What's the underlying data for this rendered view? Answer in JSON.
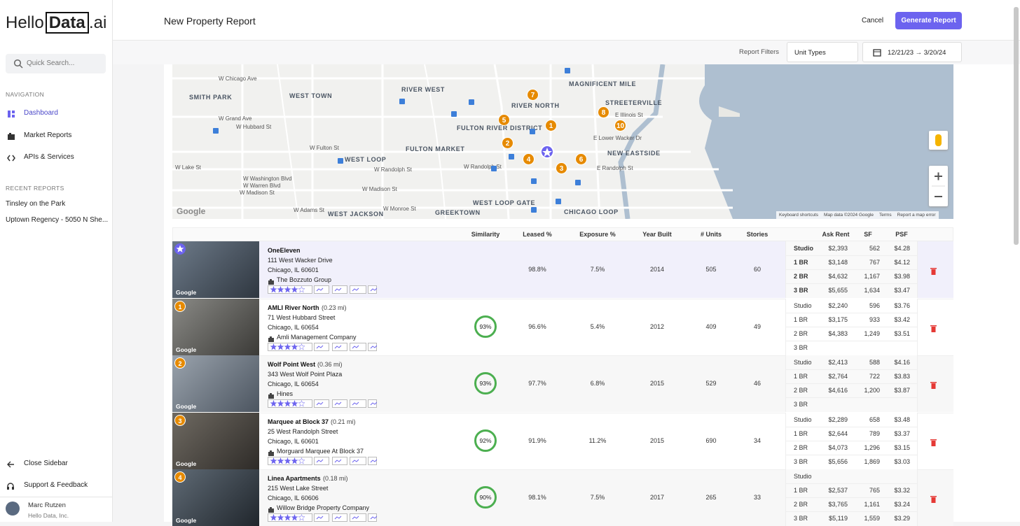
{
  "sidebar": {
    "logo": {
      "hello": "Hello",
      "data": "Data",
      "ai": ".ai"
    },
    "search_placeholder": "Quick Search...",
    "nav_heading": "NAVIGATION",
    "nav": [
      "Dashboard",
      "Market Reports",
      "APIs & Services"
    ],
    "recent_heading": "RECENT REPORTS",
    "recent": [
      "Tinsley on the Park",
      "Uptown Regency - 5050 N She..."
    ],
    "footer": [
      "Close Sidebar",
      "Support & Feedback"
    ],
    "user": {
      "name": "Marc Rutzen",
      "org": "Hello Data, Inc."
    }
  },
  "header": {
    "title": "New Property Report",
    "cancel": "Cancel",
    "generate": "Generate Report"
  },
  "filters": {
    "label": "Report Filters",
    "unit_types": "Unit Types",
    "dates": "12/21/23 → 3/20/24"
  },
  "map": {
    "labels": [
      "W Chicago Ave",
      "RIVER WEST",
      "MAGNIFICENT MILE",
      "SMITH PARK",
      "WEST TOWN",
      "STREETERVILLE",
      "RIVER NORTH",
      "FULTON RIVER DISTRICT",
      "W Grand Ave",
      "W Hubbard St",
      "E Illinois St",
      "W Fulton St",
      "FULTON MARKET",
      "WEST LOOP",
      "NEW EASTSIDE",
      "E Lower Wacker Dr",
      "W Lake St",
      "W Randolph St",
      "W Washington Blvd",
      "W Warren Blvd",
      "W Madison St",
      "E Randolph St",
      "W Adams St",
      "W Monroe St",
      "WEST JACKSON",
      "GREEKTOWN",
      "WEST LOOP GATE",
      "CHICAGO LOOP",
      "W Randolph St",
      "W Madison St"
    ],
    "markers": [
      "1",
      "2",
      "3",
      "4",
      "5",
      "6",
      "7",
      "8",
      "10"
    ],
    "logo": "Google",
    "attribution": [
      "Keyboard shortcuts",
      "Map data ©2024 Google",
      "Terms",
      "Report a map error"
    ]
  },
  "table": {
    "columns": [
      "Similarity",
      "Leased %",
      "Exposure %",
      "Year Built",
      "# Units",
      "Stories",
      "Ask Rent",
      "SF",
      "PSF"
    ],
    "photo_watermark": "Google",
    "rows": [
      {
        "name": "OneEleven",
        "address": "111 West Wacker Drive",
        "city": "Chicago, IL 60601",
        "manager": "The Bozzuto Group",
        "leased": "98.8%",
        "exposure": "7.5%",
        "year": "2014",
        "units": "505",
        "stories": "60",
        "mix": [
          [
            "Studio",
            "$2,393",
            "562",
            "$4.28"
          ],
          [
            "1 BR",
            "$3,148",
            "767",
            "$4.12"
          ],
          [
            "2 BR",
            "$4,632",
            "1,167",
            "$3.98"
          ],
          [
            "3 BR",
            "$5,655",
            "1,634",
            "$3.47"
          ]
        ]
      },
      {
        "badge": "1",
        "name": "AMLI River North",
        "distance": "(0.23 mi)",
        "address": "71 West Hubbard Street",
        "city": "Chicago, IL 60654",
        "manager": "Amli Management Company",
        "similarity": "93%",
        "leased": "96.6%",
        "exposure": "5.4%",
        "year": "2012",
        "units": "409",
        "stories": "49",
        "mix": [
          [
            "Studio",
            "$2,240",
            "596",
            "$3.76"
          ],
          [
            "1 BR",
            "$3,175",
            "933",
            "$3.42"
          ],
          [
            "2 BR",
            "$4,383",
            "1,249",
            "$3.51"
          ],
          [
            "3 BR"
          ]
        ]
      },
      {
        "badge": "2",
        "name": "Wolf Point West",
        "distance": "(0.36 mi)",
        "address": "343 West Wolf Point Plaza",
        "city": "Chicago, IL 60654",
        "manager": "Hines",
        "similarity": "93%",
        "leased": "97.7%",
        "exposure": "6.8%",
        "year": "2015",
        "units": "529",
        "stories": "46",
        "mix": [
          [
            "Studio",
            "$2,413",
            "588",
            "$4.16"
          ],
          [
            "1 BR",
            "$2,764",
            "722",
            "$3.83"
          ],
          [
            "2 BR",
            "$4,616",
            "1,200",
            "$3.87"
          ],
          [
            "3 BR"
          ]
        ]
      },
      {
        "badge": "3",
        "name": "Marquee at Block 37",
        "distance": "(0.21 mi)",
        "address": "25 West Randolph Street",
        "city": "Chicago, IL 60601",
        "manager": "Morguard Marquee At Block 37",
        "similarity": "92%",
        "leased": "91.9%",
        "exposure": "11.2%",
        "year": "2015",
        "units": "690",
        "stories": "34",
        "mix": [
          [
            "Studio",
            "$2,289",
            "658",
            "$3.48"
          ],
          [
            "1 BR",
            "$2,644",
            "789",
            "$3.37"
          ],
          [
            "2 BR",
            "$4,073",
            "1,296",
            "$3.15"
          ],
          [
            "3 BR",
            "$5,656",
            "1,869",
            "$3.03"
          ]
        ]
      },
      {
        "badge": "4",
        "name": "Linea Apartments",
        "distance": "(0.18 mi)",
        "address": "215 West Lake Street",
        "city": "Chicago, IL 60606",
        "manager": "Willow Bridge Property Company",
        "similarity": "90%",
        "leased": "98.1%",
        "exposure": "7.5%",
        "year": "2017",
        "units": "265",
        "stories": "33",
        "mix": [
          [
            "Studio"
          ],
          [
            "1 BR",
            "$2,537",
            "765",
            "$3.32"
          ],
          [
            "2 BR",
            "$3,765",
            "1,161",
            "$3.24"
          ],
          [
            "3 BR",
            "$5,119",
            "1,559",
            "$3.29"
          ]
        ]
      }
    ]
  }
}
